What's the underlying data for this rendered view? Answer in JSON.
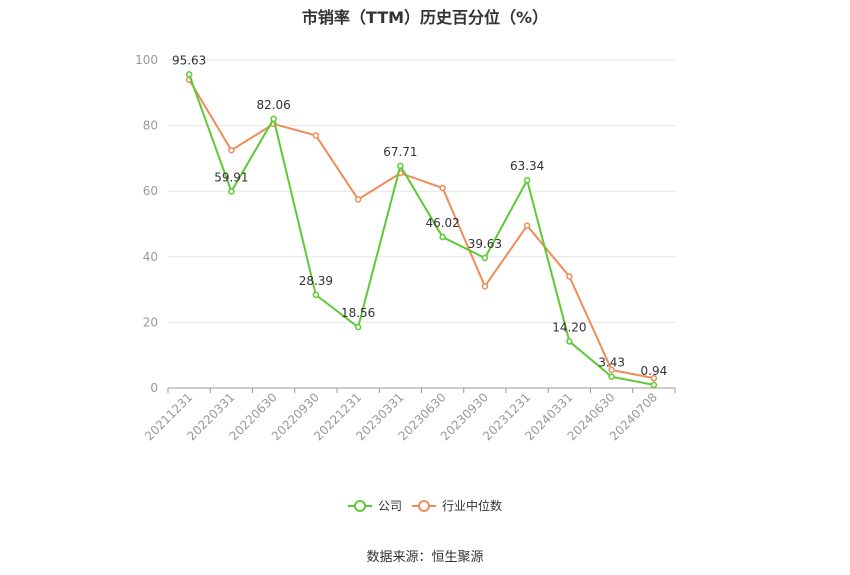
{
  "chart_data": {
    "type": "line",
    "title": "市销率（TTM）历史百分位（%）",
    "categories": [
      "20211231",
      "20220331",
      "20220630",
      "20220930",
      "20221231",
      "20230331",
      "20230630",
      "20230930",
      "20231231",
      "20240331",
      "20240630",
      "20240708"
    ],
    "series": [
      {
        "name": "公司",
        "values": [
          95.63,
          59.91,
          82.06,
          28.39,
          18.56,
          67.71,
          46.02,
          39.63,
          63.34,
          14.2,
          3.43,
          0.94
        ],
        "color": "#5dc936",
        "labels": [
          "95.63",
          "59.91",
          "82.06",
          "28.39",
          "18.56",
          "67.71",
          "46.02",
          "39.63",
          "63.34",
          "14.20",
          "3.43",
          "0.94"
        ]
      },
      {
        "name": "行业中位数",
        "values": [
          94,
          72.5,
          80.5,
          77,
          57.5,
          65.5,
          61,
          31,
          49.5,
          34,
          5.5,
          3
        ],
        "color": "#f08c5a"
      }
    ],
    "yticks": [
      0,
      20,
      40,
      60,
      80,
      100
    ],
    "ylim": [
      0,
      100
    ],
    "grid": true,
    "legend_position": "bottom-center"
  },
  "source": "数据来源：恒生聚源"
}
